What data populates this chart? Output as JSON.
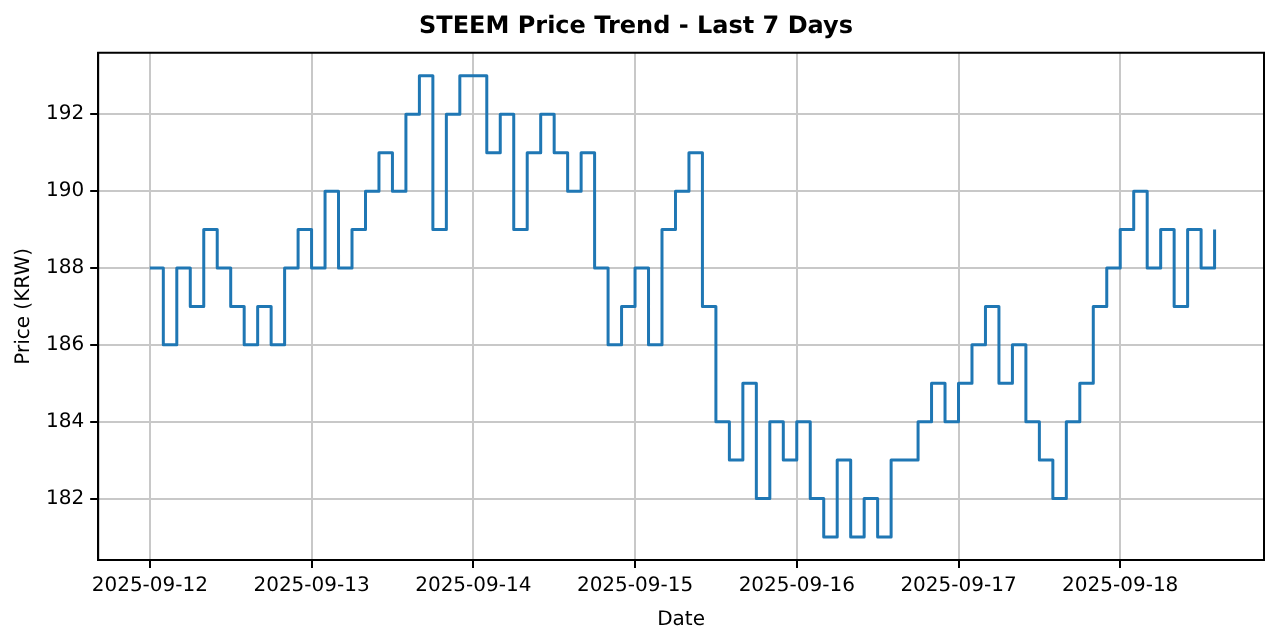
{
  "chart_data": {
    "type": "step",
    "title": "STEEM Price Trend - Last 7 Days",
    "xlabel": "Date",
    "ylabel": "Price (KRW)",
    "x": [
      "2025-09-12T00:00",
      "2025-09-12T02:00",
      "2025-09-12T04:00",
      "2025-09-12T06:00",
      "2025-09-12T08:00",
      "2025-09-12T10:00",
      "2025-09-12T12:00",
      "2025-09-12T14:00",
      "2025-09-12T16:00",
      "2025-09-12T18:00",
      "2025-09-12T20:00",
      "2025-09-12T22:00",
      "2025-09-13T00:00",
      "2025-09-13T02:00",
      "2025-09-13T04:00",
      "2025-09-13T06:00",
      "2025-09-13T08:00",
      "2025-09-13T10:00",
      "2025-09-13T12:00",
      "2025-09-13T14:00",
      "2025-09-13T16:00",
      "2025-09-13T18:00",
      "2025-09-13T20:00",
      "2025-09-13T22:00",
      "2025-09-14T00:00",
      "2025-09-14T02:00",
      "2025-09-14T04:00",
      "2025-09-14T06:00",
      "2025-09-14T08:00",
      "2025-09-14T10:00",
      "2025-09-14T12:00",
      "2025-09-14T14:00",
      "2025-09-14T16:00",
      "2025-09-14T18:00",
      "2025-09-14T20:00",
      "2025-09-14T22:00",
      "2025-09-15T00:00",
      "2025-09-15T02:00",
      "2025-09-15T04:00",
      "2025-09-15T06:00",
      "2025-09-15T08:00",
      "2025-09-15T10:00",
      "2025-09-15T12:00",
      "2025-09-15T14:00",
      "2025-09-15T16:00",
      "2025-09-15T18:00",
      "2025-09-15T20:00",
      "2025-09-15T22:00",
      "2025-09-16T00:00",
      "2025-09-16T02:00",
      "2025-09-16T04:00",
      "2025-09-16T06:00",
      "2025-09-16T08:00",
      "2025-09-16T10:00",
      "2025-09-16T12:00",
      "2025-09-16T14:00",
      "2025-09-16T16:00",
      "2025-09-16T18:00",
      "2025-09-16T20:00",
      "2025-09-16T22:00",
      "2025-09-17T00:00",
      "2025-09-17T02:00",
      "2025-09-17T04:00",
      "2025-09-17T06:00",
      "2025-09-17T08:00",
      "2025-09-17T10:00",
      "2025-09-17T12:00",
      "2025-09-17T14:00",
      "2025-09-17T16:00",
      "2025-09-17T18:00",
      "2025-09-17T20:00",
      "2025-09-17T22:00",
      "2025-09-18T00:00",
      "2025-09-18T02:00",
      "2025-09-18T04:00",
      "2025-09-18T06:00",
      "2025-09-18T08:00",
      "2025-09-18T10:00",
      "2025-09-18T12:00",
      "2025-09-18T14:00"
    ],
    "series": [
      {
        "color": "#1f77b4",
        "values": [
          188,
          186,
          188,
          187,
          189,
          188,
          187,
          186,
          187,
          186,
          188,
          189,
          188,
          190,
          188,
          189,
          190,
          191,
          190,
          192,
          193,
          189,
          192,
          193,
          193,
          191,
          192,
          189,
          191,
          192,
          191,
          190,
          191,
          188,
          186,
          187,
          188,
          186,
          189,
          190,
          191,
          187,
          184,
          183,
          185,
          182,
          184,
          183,
          184,
          182,
          181,
          183,
          181,
          182,
          181,
          183,
          183,
          184,
          185,
          184,
          185,
          186,
          187,
          185,
          186,
          184,
          183,
          182,
          184,
          185,
          187,
          188,
          189,
          190,
          188,
          189,
          187,
          189,
          188,
          189
        ]
      }
    ],
    "xlim": [
      "2025-09-11T16:20",
      "2025-09-18T21:20"
    ],
    "xticks": [
      "2025-09-12",
      "2025-09-13",
      "2025-09-14",
      "2025-09-15",
      "2025-09-16",
      "2025-09-17",
      "2025-09-18"
    ],
    "ylim": [
      180.4,
      193.6
    ],
    "yticks": [
      182,
      184,
      186,
      188,
      190,
      192
    ],
    "grid": true,
    "legend": false
  }
}
